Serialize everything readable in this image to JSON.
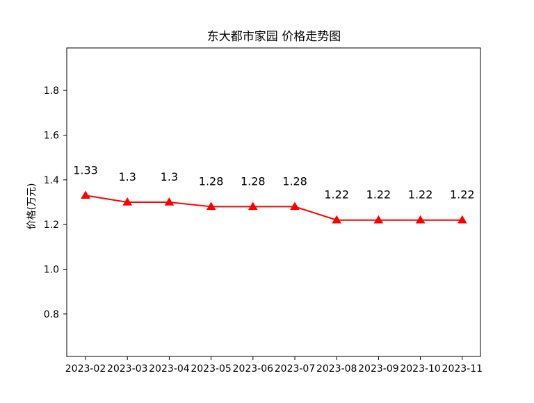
{
  "chart_data": {
    "type": "line",
    "title": "东大都市家园 价格走势图",
    "xlabel": "",
    "ylabel": "价格(万元)",
    "categories": [
      "2023-02",
      "2023-03",
      "2023-04",
      "2023-05",
      "2023-06",
      "2023-07",
      "2023-08",
      "2023-09",
      "2023-10",
      "2023-11"
    ],
    "series": [
      {
        "values": [
          1.33,
          1.3,
          1.3,
          1.28,
          1.28,
          1.28,
          1.22,
          1.22,
          1.22,
          1.22
        ],
        "labels": [
          "1.33",
          "1.3",
          "1.3",
          "1.28",
          "1.28",
          "1.28",
          "1.22",
          "1.22",
          "1.22",
          "1.22"
        ],
        "color": "#ff0000",
        "marker": "triangle-up"
      }
    ],
    "ylim": [
      0.61,
      1.99
    ],
    "yticks": [
      {
        "value": 0.8,
        "label": "0.8"
      },
      {
        "value": 1.0,
        "label": "1.0"
      },
      {
        "value": 1.2,
        "label": "1.2"
      },
      {
        "value": 1.4,
        "label": "1.4"
      },
      {
        "value": 1.6,
        "label": "1.6"
      },
      {
        "value": 1.8,
        "label": "1.8"
      }
    ],
    "grid": false,
    "legend": "none"
  }
}
